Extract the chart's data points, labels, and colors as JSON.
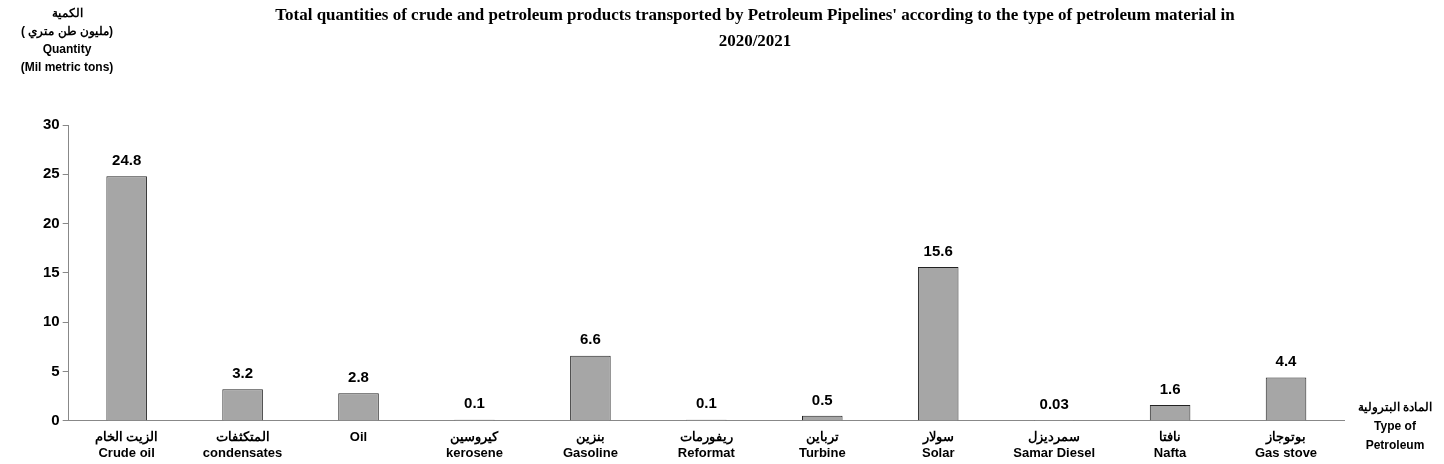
{
  "chart_data": {
    "type": "bar",
    "title": "Total quantities of crude and petroleum products transported by Petroleum Pipelines' according to the type of petroleum material in 2020/2021",
    "ylabel": "الكمية\n( مليون طن متري)\nQuantity\n(Mil metric tons)",
    "xlabel": "المادة البترولية\nType of\nPetroleum",
    "categories": [
      "الزيت الخام\nCrude oil",
      "المتكثفات\ncondensates",
      "Oil",
      "كيروسين\nkerosene",
      "بنزين\nGasoline",
      "ريفورمات\nReformat",
      "ترباين\nTurbine",
      "سولار\nSolar",
      "سمرديزل\nSamar Diesel",
      "نافتا\nNafta",
      "بوتوجاز\nGas stove"
    ],
    "values": [
      24.8,
      3.2,
      2.8,
      0.1,
      6.6,
      0.1,
      0.5,
      15.6,
      0.03,
      1.6,
      4.4
    ],
    "color": "#a6a6a6",
    "ylim": [
      0,
      30
    ],
    "yticks": [
      0,
      5,
      10,
      15,
      20,
      25,
      30
    ],
    "grid": false,
    "legend": false,
    "data_labels": true
  }
}
